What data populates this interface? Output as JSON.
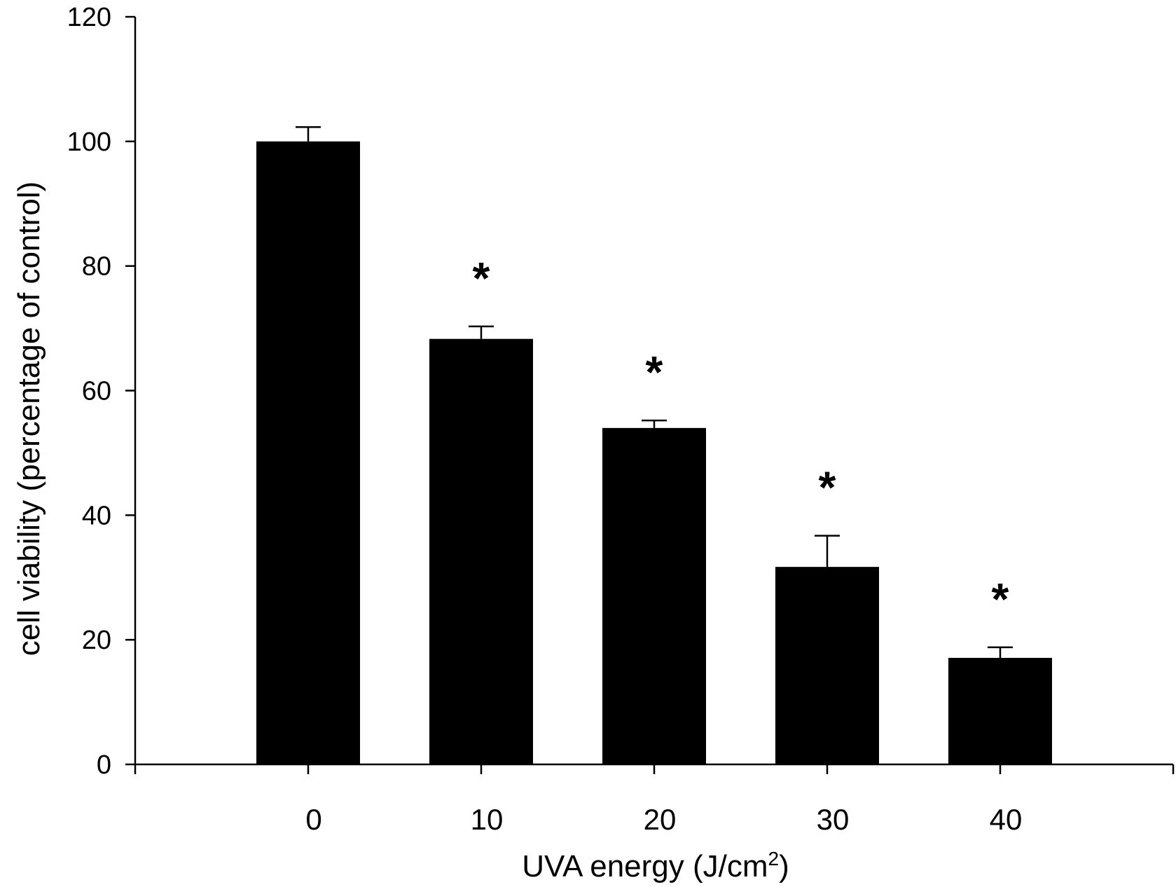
{
  "chart_data": {
    "type": "bar",
    "title": "",
    "xlabel": "UVA energy (J/cm",
    "xlabel_superscript": "2",
    "xlabel_suffix": ")",
    "ylabel": "cell viability (percentage of control)",
    "categories": [
      "0",
      "10",
      "20",
      "30",
      "40"
    ],
    "values": [
      100,
      68.3,
      54,
      31.7,
      17.1
    ],
    "errors": [
      2.3,
      2.0,
      1.2,
      5.0,
      1.7
    ],
    "significance": [
      "",
      "*",
      "*",
      "*",
      "*"
    ],
    "ylim": [
      0,
      120
    ],
    "yticks": [
      0,
      20,
      40,
      60,
      80,
      100,
      120
    ],
    "grid": false,
    "legend": "none",
    "bar_color": "#000000"
  }
}
